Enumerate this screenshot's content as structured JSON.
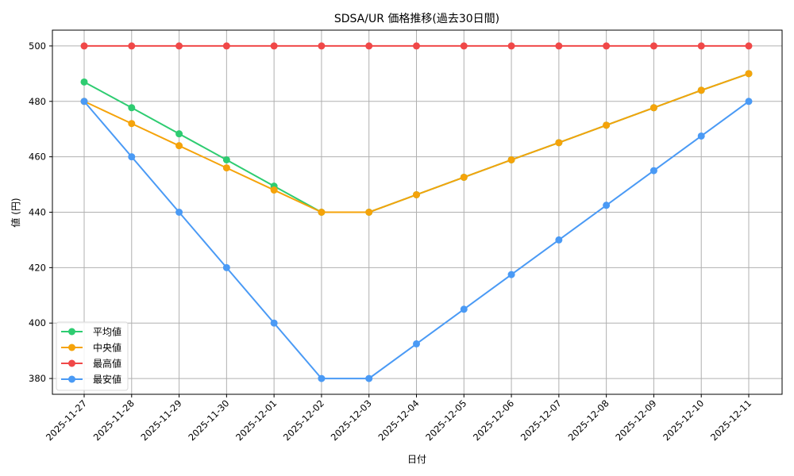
{
  "chart_data": {
    "type": "line",
    "title": "SDSA/UR 価格推移(過去30日間)",
    "xlabel": "日付",
    "ylabel": "値 (円)",
    "ylim": [
      374.3,
      505.7
    ],
    "yticks": [
      380,
      400,
      420,
      440,
      460,
      480,
      500
    ],
    "grid": true,
    "legend_position": "lower left",
    "categories": [
      "2025-11-27",
      "2025-11-28",
      "2025-11-29",
      "2025-11-30",
      "2025-12-01",
      "2025-12-02",
      "2025-12-03",
      "2025-12-04",
      "2025-12-05",
      "2025-12-06",
      "2025-12-07",
      "2025-12-08",
      "2025-12-09",
      "2025-12-10",
      "2025-12-11"
    ],
    "series": [
      {
        "name": "平均値",
        "color": "#2ecc71",
        "values": [
          487,
          477.7,
          468.3,
          458.9,
          449.4,
          440,
          440,
          446.3,
          452.6,
          458.9,
          465.1,
          471.4,
          477.7,
          484,
          490
        ]
      },
      {
        "name": "中央値",
        "color": "#f5a30a",
        "values": [
          480,
          472,
          464,
          456,
          448,
          440,
          440,
          446.3,
          452.6,
          458.9,
          465.1,
          471.4,
          477.7,
          484,
          490
        ]
      },
      {
        "name": "最高値",
        "color": "#f04848",
        "values": [
          500,
          500,
          500,
          500,
          500,
          500,
          500,
          500,
          500,
          500,
          500,
          500,
          500,
          500,
          500
        ]
      },
      {
        "name": "最安値",
        "color": "#4a9af5",
        "values": [
          480,
          460,
          440,
          420,
          400,
          380,
          380,
          392.5,
          405,
          417.5,
          430,
          442.5,
          455,
          467.5,
          480
        ]
      }
    ]
  }
}
